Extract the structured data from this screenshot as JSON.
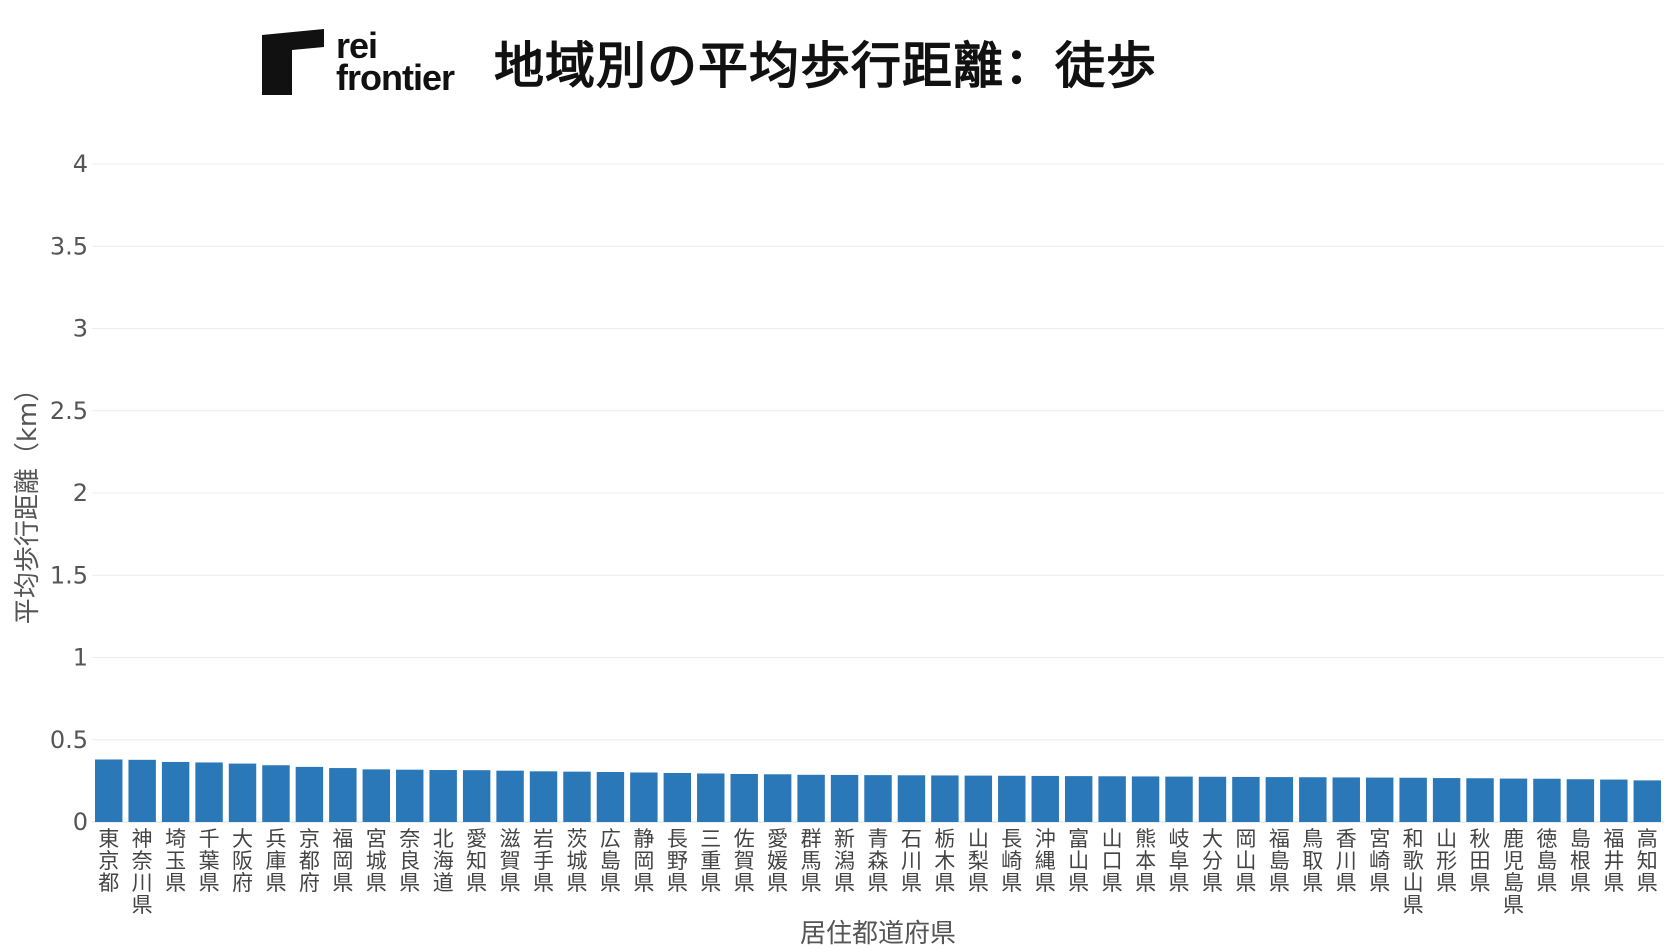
{
  "header": {
    "logo_line1": "rei",
    "logo_line2": "frontier",
    "title": "地域別の平均歩行距離：徒歩"
  },
  "chart_data": {
    "type": "bar",
    "title": "地域別の平均歩行距離：徒歩",
    "xlabel": "居住都道府県",
    "ylabel": "平均歩行距離（km）",
    "ylim": [
      0,
      4
    ],
    "yticks": [
      0,
      0.5,
      1,
      1.5,
      2,
      2.5,
      3,
      3.5,
      4
    ],
    "grid": true,
    "bar_color": "#2a78b8",
    "categories": [
      "東京都",
      "神奈川県",
      "埼玉県",
      "千葉県",
      "大阪府",
      "兵庫県",
      "京都府",
      "福岡県",
      "宮城県",
      "奈良県",
      "北海道",
      "愛知県",
      "滋賀県",
      "岩手県",
      "茨城県",
      "広島県",
      "静岡県",
      "長野県",
      "三重県",
      "佐賀県",
      "愛媛県",
      "群馬県",
      "新潟県",
      "青森県",
      "石川県",
      "栃木県",
      "山梨県",
      "長崎県",
      "沖縄県",
      "富山県",
      "山口県",
      "熊本県",
      "岐阜県",
      "大分県",
      "岡山県",
      "福島県",
      "鳥取県",
      "香川県",
      "宮崎県",
      "和歌山県",
      "山形県",
      "秋田県",
      "鹿児島県",
      "徳島県",
      "島根県",
      "福井県",
      "高知県"
    ],
    "values": [
      0.38,
      0.378,
      0.365,
      0.362,
      0.355,
      0.345,
      0.335,
      0.328,
      0.32,
      0.318,
      0.316,
      0.315,
      0.312,
      0.308,
      0.306,
      0.304,
      0.301,
      0.298,
      0.295,
      0.292,
      0.29,
      0.287,
      0.286,
      0.285,
      0.284,
      0.283,
      0.282,
      0.281,
      0.28,
      0.279,
      0.278,
      0.277,
      0.276,
      0.275,
      0.274,
      0.273,
      0.272,
      0.271,
      0.27,
      0.269,
      0.267,
      0.266,
      0.264,
      0.263,
      0.26,
      0.258,
      0.253
    ]
  }
}
